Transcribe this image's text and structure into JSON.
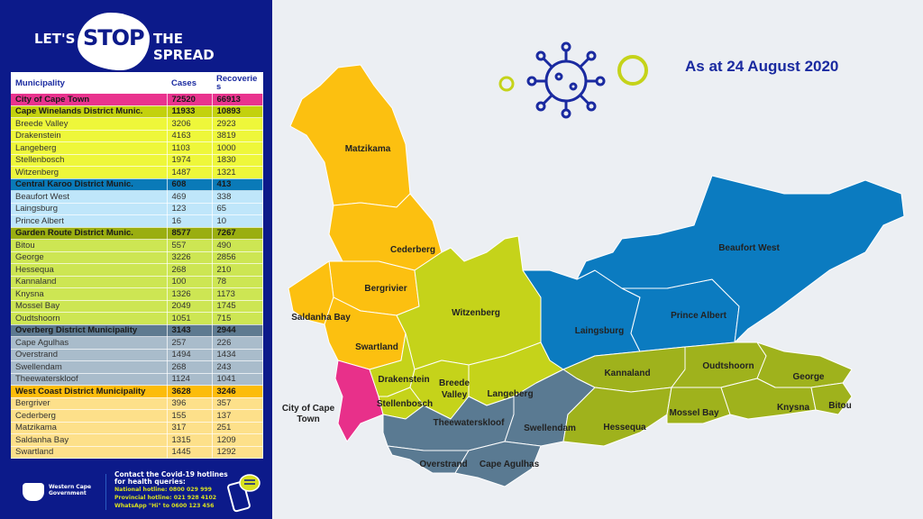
{
  "logo": {
    "part1": "LET'S",
    "part2": "STOP",
    "part3": "THE SPREAD"
  },
  "date_label": "As at 24 August 2020",
  "table": {
    "headers": [
      "Municipality",
      "Cases",
      "Recoverie s"
    ],
    "rows": [
      {
        "name": "City of Cape Town",
        "cases": "72520",
        "recoveries": "66913",
        "district": true,
        "bg": "#e9338e"
      },
      {
        "name": "Cape Winelands District Munic.",
        "cases": "11933",
        "recoveries": "10893",
        "district": true,
        "bg": "#c3d10d"
      },
      {
        "name": "Breede Valley",
        "cases": "3206",
        "recoveries": "2923",
        "bg": "#eef73a"
      },
      {
        "name": "Drakenstein",
        "cases": "4163",
        "recoveries": "3819",
        "bg": "#eef73a"
      },
      {
        "name": "Langeberg",
        "cases": "1103",
        "recoveries": "1000",
        "bg": "#eef73a"
      },
      {
        "name": "Stellenbosch",
        "cases": "1974",
        "recoveries": "1830",
        "bg": "#eef73a"
      },
      {
        "name": "Witzenberg",
        "cases": "1487",
        "recoveries": "1321",
        "bg": "#eef73a"
      },
      {
        "name": "Central Karoo District Munic.",
        "cases": "608",
        "recoveries": "413",
        "district": true,
        "bg": "#0a7ab8"
      },
      {
        "name": "Beaufort West",
        "cases": "469",
        "recoveries": "338",
        "bg": "#bfe6fa"
      },
      {
        "name": "Laingsburg",
        "cases": "123",
        "recoveries": "65",
        "bg": "#bfe6fa"
      },
      {
        "name": "Prince Albert",
        "cases": "16",
        "recoveries": "10",
        "bg": "#bfe6fa"
      },
      {
        "name": "Garden Route District Munic.",
        "cases": "8577",
        "recoveries": "7267",
        "district": true,
        "bg": "#9aae10"
      },
      {
        "name": "Bitou",
        "cases": "557",
        "recoveries": "490",
        "bg": "#cde653"
      },
      {
        "name": "George",
        "cases": "3226",
        "recoveries": "2856",
        "bg": "#cde653"
      },
      {
        "name": "Hessequa",
        "cases": "268",
        "recoveries": "210",
        "bg": "#cde653"
      },
      {
        "name": "Kannaland",
        "cases": "100",
        "recoveries": "78",
        "bg": "#cde653"
      },
      {
        "name": "Knysna",
        "cases": "1326",
        "recoveries": "1173",
        "bg": "#cde653"
      },
      {
        "name": "Mossel Bay",
        "cases": "2049",
        "recoveries": "1745",
        "bg": "#cde653"
      },
      {
        "name": "Oudtshoorn",
        "cases": "1051",
        "recoveries": "715",
        "bg": "#cde653"
      },
      {
        "name": "Overberg District Municipality",
        "cases": "3143",
        "recoveries": "2944",
        "district": true,
        "bg": "#5e7a90"
      },
      {
        "name": "Cape Agulhas",
        "cases": "257",
        "recoveries": "226",
        "bg": "#a9bccb"
      },
      {
        "name": "Overstrand",
        "cases": "1494",
        "recoveries": "1434",
        "bg": "#a9bccb"
      },
      {
        "name": "Swellendam",
        "cases": "268",
        "recoveries": "243",
        "bg": "#a9bccb"
      },
      {
        "name": "Theewaterskloof",
        "cases": "1124",
        "recoveries": "1041",
        "bg": "#a9bccb"
      },
      {
        "name": "West Coast District Municipality",
        "cases": "3628",
        "recoveries": "3246",
        "district": true,
        "bg": "#fcbc0a"
      },
      {
        "name": "Bergriver",
        "cases": "396",
        "recoveries": "357",
        "bg": "#fde08a"
      },
      {
        "name": "Cederberg",
        "cases": "155",
        "recoveries": "137",
        "bg": "#fde08a"
      },
      {
        "name": "Matzikama",
        "cases": "317",
        "recoveries": "251",
        "bg": "#fde08a"
      },
      {
        "name": "Saldanha Bay",
        "cases": "1315",
        "recoveries": "1209",
        "bg": "#fde08a"
      },
      {
        "name": "Swartland",
        "cases": "1445",
        "recoveries": "1292",
        "bg": "#fde08a"
      }
    ]
  },
  "footer": {
    "gov_line1": "Western Cape",
    "gov_line2": "Government",
    "contact_line1": "Contact the Covid-19 hotlines",
    "contact_line2": "for health queries:",
    "national": "National hotline: 0800 029 999",
    "provincial": "Provincial hotline: 021 928 4102",
    "whatsapp": "WhatsApp \"Hi\" to 0600 123 456"
  },
  "map": {
    "colors": {
      "west_coast": "#fcc010",
      "cape_town": "#e8308a",
      "winelands": "#c5d31a",
      "central_karoo": "#0b7bc0",
      "garden_route": "#9fb21c",
      "overberg": "#5a7a92"
    },
    "regions": {
      "matzikama": "Matzikama",
      "cederberg": "Cederberg",
      "bergrivier": "Bergrivier",
      "saldanha": "Saldanha Bay",
      "swartland": "Swartland",
      "cape_town_1": "City of Cape",
      "cape_town_2": "Town",
      "witzenberg": "Witzenberg",
      "drakenstein": "Drakenstein",
      "stellenbosch": "Stellenbosch",
      "breede_1": "Breede",
      "breede_2": "Valley",
      "langeberg": "Langeberg",
      "theewaterskloof": "Theewaterskloof",
      "swellendam": "Swellendam",
      "overstrand": "Overstrand",
      "cape_agulhas": "Cape Agulhas",
      "laingsburg": "Laingsburg",
      "prince_albert": "Prince Albert",
      "beaufort_west": "Beaufort West",
      "kannaland": "Kannaland",
      "oudtshoorn": "Oudtshoorn",
      "hessequa": "Hessequa",
      "mossel_bay": "Mossel Bay",
      "george": "George",
      "knysna": "Knysna",
      "bitou": "Bitou"
    }
  }
}
